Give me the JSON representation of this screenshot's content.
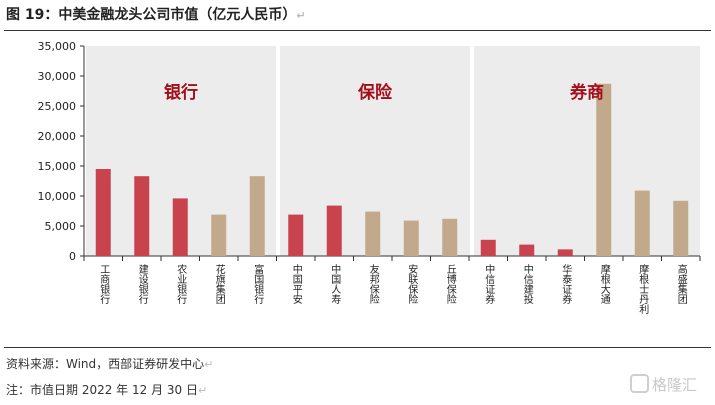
{
  "figure": {
    "title": "图 19：中美金融龙头公司市值（亿元人民币）",
    "source": "资料来源：Wind，西部证券研发中心",
    "note": "注：市值日期 2022 年 12 月 30 日",
    "watermark": "格隆汇"
  },
  "colors": {
    "china": "#c9434e",
    "us": "#c2a98c",
    "panel": "#ececec",
    "group_label": "#a50e18"
  },
  "chart_data": {
    "type": "bar",
    "ylim": [
      0,
      35000
    ],
    "yticks": [
      0,
      5000,
      10000,
      15000,
      20000,
      25000,
      30000,
      35000
    ],
    "ytick_labels": [
      "0",
      "5,000",
      "10,000",
      "15,000",
      "20,000",
      "25,000",
      "30,000",
      "35,000"
    ],
    "groups": [
      {
        "label": "银行",
        "categories": [
          "工商银行",
          "建设银行",
          "农业银行",
          "花旗集团",
          "富国银行"
        ],
        "values": [
          14500,
          13300,
          9600,
          6900,
          13300
        ],
        "market": [
          "china",
          "china",
          "china",
          "us",
          "us"
        ]
      },
      {
        "label": "保险",
        "categories": [
          "中国平安",
          "中国人寿",
          "友邦保险",
          "安联保险",
          "丘博保险"
        ],
        "values": [
          6900,
          8400,
          7400,
          5900,
          6200
        ],
        "market": [
          "china",
          "china",
          "us",
          "us",
          "us"
        ]
      },
      {
        "label": "券商",
        "categories": [
          "中信证券",
          "中信建投",
          "华泰证券",
          "摩根大通",
          "摩根士丹利",
          "高盛集团"
        ],
        "values": [
          2700,
          1900,
          1100,
          28700,
          10900,
          9200
        ],
        "market": [
          "china",
          "china",
          "china",
          "us",
          "us",
          "us"
        ]
      }
    ]
  }
}
